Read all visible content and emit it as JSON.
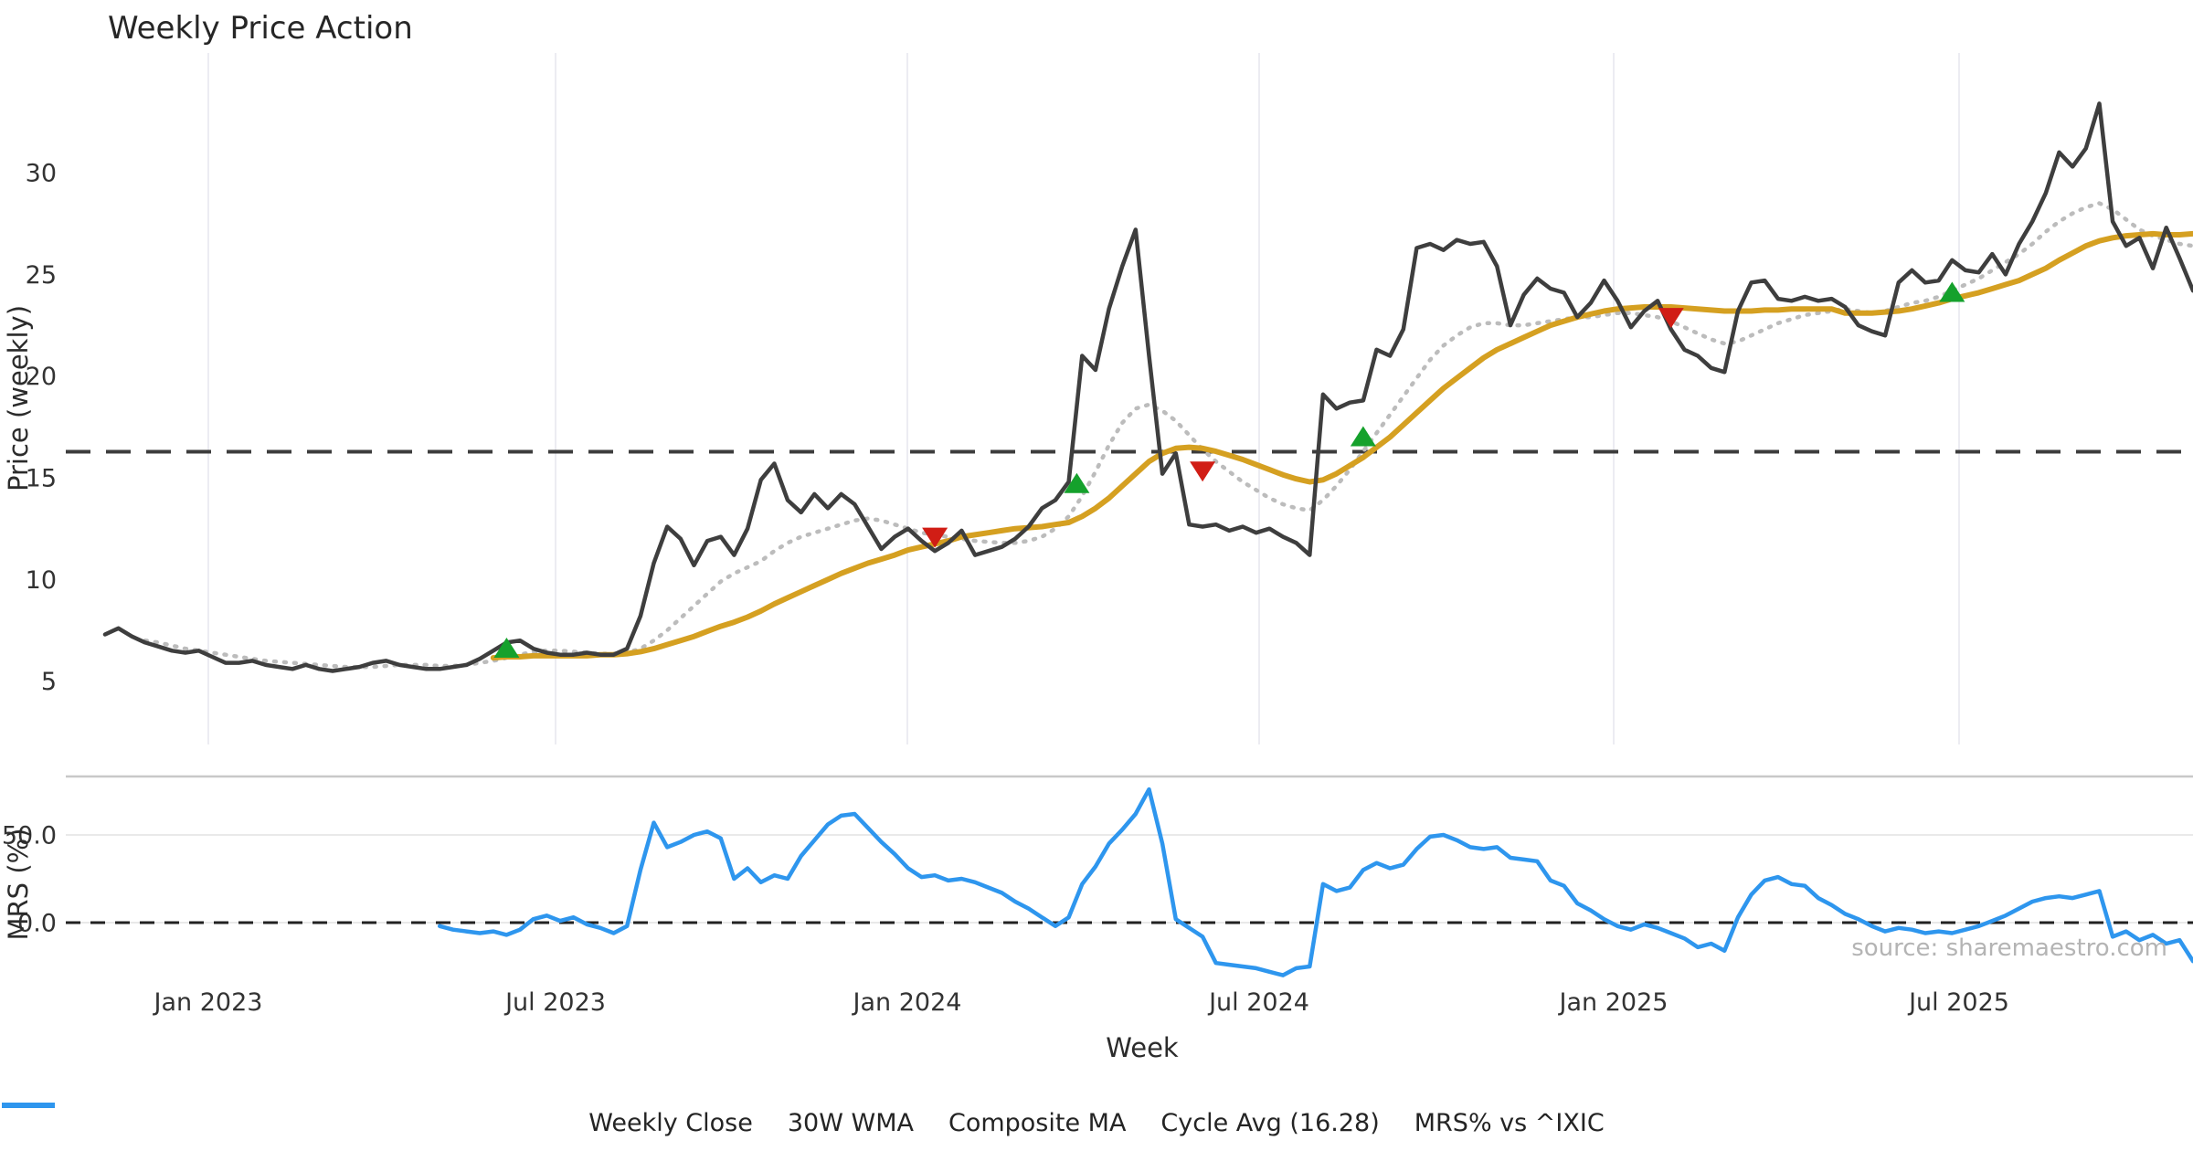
{
  "title": "Weekly Price Action",
  "y_axis": {
    "label": "Price (weekly)",
    "ticks": [
      30,
      25,
      20,
      15,
      10,
      5
    ]
  },
  "mrs_axis": {
    "label": "MRS (%)",
    "ticks": [
      {
        "label": "50.0",
        "value": 50
      },
      {
        "label": "0.0",
        "value": 0
      }
    ]
  },
  "x_axis": {
    "label": "Week",
    "ticks": [
      "Jan 2023",
      "Jul 2023",
      "Jan 2024",
      "Jul 2024",
      "Jan 2025",
      "Jul 2025"
    ]
  },
  "source": "source: sharemaestro.com",
  "colors": {
    "close": "#3e3e3e",
    "wma": "#d5a021",
    "composite": "#bcbcbc",
    "cycle": "#3c3c3c",
    "mrs": "#2e96ee",
    "buy": "#15a12c",
    "sell": "#d11d15",
    "grid": "#ececf2",
    "separator": "#c8c8c8",
    "subgrid": "#e9e9e9",
    "tick_text": "#333333",
    "title_text": "#262626",
    "source_text": "#b4b4b4"
  },
  "legend": [
    {
      "label": "Weekly Close",
      "style": "solid",
      "color": "#3e3e3e"
    },
    {
      "label": "30W WMA",
      "style": "solid",
      "color": "#d5a021"
    },
    {
      "label": "Composite MA",
      "style": "dotted",
      "color": "#bcbcbc"
    },
    {
      "label": "Cycle Avg (16.28)",
      "style": "dashed",
      "color": "#3c3c3c"
    },
    {
      "label": "MRS% vs ^IXIC",
      "style": "solid",
      "color": "#2e96ee"
    }
  ],
  "chart_data": {
    "type": "line",
    "title": "Weekly Price Action",
    "xlabel": "Week",
    "ylabel": "Price (weekly)",
    "ylabel_sub": "MRS (%)",
    "x_unit": "week_index_from_2022-11-07",
    "x_tick_labels": [
      "Jan 2023",
      "Jul 2023",
      "Jan 2024",
      "Jul 2024",
      "Jan 2025",
      "Jul 2025"
    ],
    "price_ticks": [
      5,
      10,
      15,
      20,
      25,
      30
    ],
    "mrs_ticks": [
      0,
      50
    ],
    "cycle_avg": 16.28,
    "series": [
      {
        "name": "Weekly Close",
        "axis": "price",
        "style": "solid",
        "color": "#3e3e3e",
        "start_week": 0,
        "values": [
          7.3,
          7.6,
          7.2,
          6.9,
          6.7,
          6.5,
          6.4,
          6.5,
          6.2,
          5.9,
          5.9,
          6.0,
          5.8,
          5.7,
          5.6,
          5.8,
          5.6,
          5.5,
          5.6,
          5.7,
          5.9,
          6.0,
          5.8,
          5.7,
          5.6,
          5.6,
          5.7,
          5.8,
          6.1,
          6.5,
          6.9,
          7.0,
          6.6,
          6.4,
          6.3,
          6.3,
          6.4,
          6.3,
          6.3,
          6.6,
          8.2,
          10.8,
          12.6,
          12.0,
          10.7,
          11.9,
          12.1,
          11.2,
          12.5,
          14.9,
          15.7,
          13.9,
          13.3,
          14.2,
          13.5,
          14.2,
          13.7,
          12.6,
          11.5,
          12.1,
          12.5,
          11.9,
          11.4,
          11.8,
          12.4,
          11.2,
          11.4,
          11.6,
          12.0,
          12.6,
          13.5,
          13.9,
          14.8,
          21.0,
          20.3,
          23.3,
          25.4,
          27.2,
          21.0,
          15.2,
          16.2,
          12.7,
          12.6,
          12.7,
          12.4,
          12.6,
          12.3,
          12.5,
          12.1,
          11.8,
          11.2,
          19.1,
          18.4,
          18.7,
          18.8,
          21.3,
          21.0,
          22.3,
          26.3,
          26.5,
          26.2,
          26.7,
          26.5,
          26.6,
          25.4,
          22.5,
          24.0,
          24.8,
          24.3,
          24.1,
          22.9,
          23.6,
          24.7,
          23.7,
          22.4,
          23.2,
          23.7,
          22.3,
          21.3,
          21.0,
          20.4,
          20.2,
          23.2,
          24.6,
          24.7,
          23.8,
          23.7,
          23.9,
          23.7,
          23.8,
          23.4,
          22.5,
          22.2,
          22.0,
          24.6,
          25.2,
          24.6,
          24.7,
          25.7,
          25.2,
          25.1,
          26.0,
          25.0,
          26.5,
          27.6,
          29.0,
          31.0,
          30.3,
          31.2,
          33.4,
          27.6,
          26.4,
          26.8,
          25.3,
          27.3,
          25.8,
          24.2
        ]
      },
      {
        "name": "30W WMA",
        "axis": "price",
        "style": "solid",
        "color": "#d5a021",
        "start_week": 29,
        "values": [
          6.15,
          6.2,
          6.2,
          6.25,
          6.25,
          6.25,
          6.25,
          6.25,
          6.3,
          6.3,
          6.35,
          6.45,
          6.6,
          6.8,
          7.0,
          7.2,
          7.45,
          7.7,
          7.9,
          8.15,
          8.45,
          8.8,
          9.1,
          9.4,
          9.7,
          10.0,
          10.3,
          10.55,
          10.8,
          11.0,
          11.2,
          11.45,
          11.6,
          11.75,
          11.9,
          12.1,
          12.2,
          12.3,
          12.4,
          12.5,
          12.55,
          12.6,
          12.7,
          12.8,
          13.1,
          13.5,
          14.0,
          14.6,
          15.2,
          15.8,
          16.2,
          16.45,
          16.5,
          16.45,
          16.3,
          16.1,
          15.9,
          15.65,
          15.4,
          15.15,
          14.95,
          14.8,
          14.9,
          15.2,
          15.6,
          16.0,
          16.5,
          17.0,
          17.6,
          18.2,
          18.8,
          19.4,
          19.9,
          20.4,
          20.9,
          21.3,
          21.6,
          21.9,
          22.2,
          22.5,
          22.7,
          22.9,
          23.05,
          23.2,
          23.3,
          23.35,
          23.4,
          23.4,
          23.4,
          23.35,
          23.3,
          23.25,
          23.2,
          23.2,
          23.2,
          23.25,
          23.25,
          23.3,
          23.3,
          23.3,
          23.3,
          23.1,
          23.1,
          23.1,
          23.15,
          23.2,
          23.3,
          23.45,
          23.6,
          23.8,
          23.95,
          24.1,
          24.3,
          24.5,
          24.7,
          25.0,
          25.3,
          25.7,
          26.05,
          26.4,
          26.65,
          26.8,
          26.9,
          26.95,
          27.0,
          26.95,
          26.95,
          27.0
        ]
      },
      {
        "name": "Composite MA",
        "axis": "price",
        "style": "dotted",
        "color": "#bcbcbc",
        "start_week": 3,
        "values": [
          7.0,
          6.9,
          6.75,
          6.6,
          6.5,
          6.4,
          6.3,
          6.2,
          6.1,
          6.0,
          5.95,
          5.9,
          5.85,
          5.8,
          5.75,
          5.7,
          5.7,
          5.7,
          5.75,
          5.8,
          5.8,
          5.8,
          5.75,
          5.75,
          5.8,
          5.9,
          6.0,
          6.15,
          6.3,
          6.45,
          6.5,
          6.5,
          6.45,
          6.4,
          6.35,
          6.35,
          6.4,
          6.6,
          7.0,
          7.5,
          8.1,
          8.7,
          9.3,
          9.9,
          10.3,
          10.6,
          10.9,
          11.4,
          11.8,
          12.1,
          12.3,
          12.5,
          12.7,
          12.9,
          13.0,
          12.9,
          12.7,
          12.5,
          12.3,
          12.2,
          12.1,
          12.0,
          11.9,
          11.85,
          11.8,
          11.8,
          11.9,
          12.1,
          12.5,
          13.1,
          14.1,
          15.3,
          16.6,
          17.7,
          18.4,
          18.6,
          18.3,
          17.8,
          17.1,
          16.4,
          15.8,
          15.3,
          14.8,
          14.4,
          14.0,
          13.7,
          13.5,
          13.4,
          13.9,
          14.6,
          15.4,
          16.3,
          17.2,
          18.1,
          19.0,
          19.9,
          20.8,
          21.5,
          22.0,
          22.4,
          22.6,
          22.6,
          22.5,
          22.5,
          22.6,
          22.7,
          22.8,
          22.9,
          22.9,
          23.0,
          23.1,
          23.1,
          23.0,
          22.9,
          22.7,
          22.4,
          22.1,
          21.8,
          21.6,
          21.7,
          22.0,
          22.3,
          22.6,
          22.8,
          23.0,
          23.1,
          23.2,
          23.3,
          23.2,
          23.1,
          23.2,
          23.4,
          23.6,
          23.7,
          23.9,
          24.2,
          24.5,
          24.8,
          25.2,
          25.6,
          26.0,
          26.5,
          27.1,
          27.6,
          28.0,
          28.3,
          28.5,
          28.2,
          27.7,
          27.2,
          26.9,
          26.7,
          26.5,
          26.4
        ]
      },
      {
        "name": "MRS% vs ^IXIC",
        "axis": "mrs",
        "style": "solid",
        "color": "#2e96ee",
        "start_week": 25,
        "values": [
          -2,
          -4,
          -5,
          -6,
          -5,
          -7,
          -4,
          2,
          4,
          1,
          3,
          -1,
          -3,
          -6,
          -2,
          30,
          57,
          43,
          46,
          50,
          52,
          48,
          25,
          31,
          23,
          27,
          25,
          38,
          47,
          56,
          61,
          62,
          54,
          46,
          39,
          31,
          26,
          27,
          24,
          25,
          23,
          20,
          17,
          12,
          8,
          3,
          -2,
          3,
          22,
          32,
          45,
          53,
          62,
          76,
          45,
          2,
          -3,
          -8,
          -23,
          -24,
          -25,
          -26,
          -28,
          -30,
          -26,
          -25,
          22,
          18,
          20,
          30,
          34,
          31,
          33,
          42,
          49,
          50,
          47,
          43,
          42,
          43,
          37,
          36,
          35,
          24,
          21,
          11,
          7,
          2,
          -2,
          -4,
          -1,
          -3,
          -6,
          -9,
          -14,
          -12,
          -16,
          3,
          16,
          24,
          26,
          22,
          21,
          14,
          10,
          5,
          2,
          -2,
          -5,
          -3,
          -4,
          -6,
          -5,
          -6,
          -4,
          -2,
          1,
          4,
          8,
          12,
          14,
          15,
          14,
          16,
          18,
          -8,
          -5,
          -10,
          -7,
          -12,
          -10,
          -22
        ]
      }
    ],
    "signals": {
      "buy": [
        {
          "week": 30,
          "price": 6.6
        },
        {
          "week": 72.6,
          "price": 14.7
        },
        {
          "week": 94,
          "price": 17.0
        },
        {
          "week": 138,
          "price": 24.1
        }
      ],
      "sell": [
        {
          "week": 62,
          "price": 12.1
        },
        {
          "week": 82,
          "price": 15.35
        },
        {
          "week": 117,
          "price": 22.9
        }
      ]
    }
  }
}
